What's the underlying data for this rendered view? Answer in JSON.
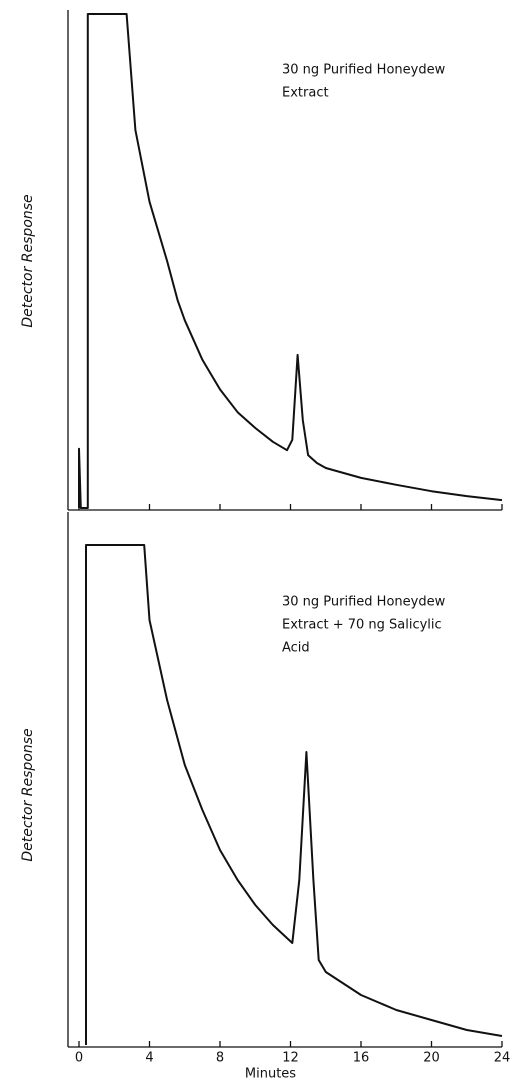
{
  "chart_data": [
    {
      "type": "line",
      "ylabel": "Detector Response",
      "annotation": [
        "30 ng Purified Honeydew",
        "Extract"
      ],
      "x": [
        0,
        0,
        0.1,
        0.5,
        0.5,
        2.7,
        3.2,
        4,
        5,
        5.6,
        6,
        7,
        8,
        9,
        10,
        11,
        11.8,
        12.1,
        12.4,
        12.7,
        13,
        13.5,
        14,
        16,
        18,
        20,
        22,
        24
      ],
      "values": [
        0,
        12,
        0,
        0,
        100,
        100,
        76.5,
        62,
        50,
        42,
        38,
        30,
        24,
        19.4,
        16.2,
        13.4,
        11.7,
        13.8,
        31,
        17.8,
        10.7,
        9.1,
        8.1,
        6.1,
        4.7,
        3.4,
        2.4,
        1.6
      ],
      "xlim": [
        0,
        24
      ],
      "xticks": [
        0,
        4,
        8,
        12,
        16,
        20,
        24
      ],
      "ylim": [
        0,
        100
      ]
    },
    {
      "type": "line",
      "ylabel": "Detector Response",
      "xlabel": "Minutes",
      "annotation": [
        "30 ng Purified Honeydew",
        "Extract + 70 ng Salicylic",
        "Acid"
      ],
      "x": [
        0.4,
        0.4,
        3.7,
        4,
        5,
        6,
        7,
        8,
        9,
        10,
        11,
        12.1,
        12.5,
        12.9,
        13.3,
        13.6,
        14,
        16,
        18,
        20,
        22,
        24
      ],
      "values": [
        0,
        100,
        100,
        85,
        69,
        56,
        47,
        39,
        33,
        28,
        24,
        20.4,
        33,
        58.6,
        33,
        17,
        14.6,
        10,
        7,
        5,
        3,
        1.8
      ],
      "xlim": [
        0,
        24
      ],
      "xticks": [
        0,
        4,
        8,
        12,
        16,
        20,
        24
      ],
      "ylim": [
        0,
        100
      ]
    }
  ]
}
